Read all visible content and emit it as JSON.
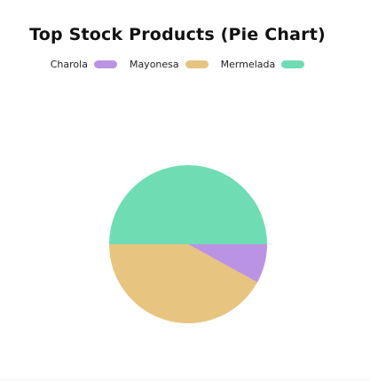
{
  "chart_data": {
    "type": "pie",
    "title": "Top Stock Products (Pie Chart)",
    "legend_position": "top",
    "slices": [
      {
        "name": "Charola",
        "value": 8,
        "color": "#bb93e4"
      },
      {
        "name": "Mayonesa",
        "value": 42,
        "color": "#e7c47f"
      },
      {
        "name": "Mermelada",
        "value": 50,
        "color": "#6fdcb4"
      }
    ]
  }
}
